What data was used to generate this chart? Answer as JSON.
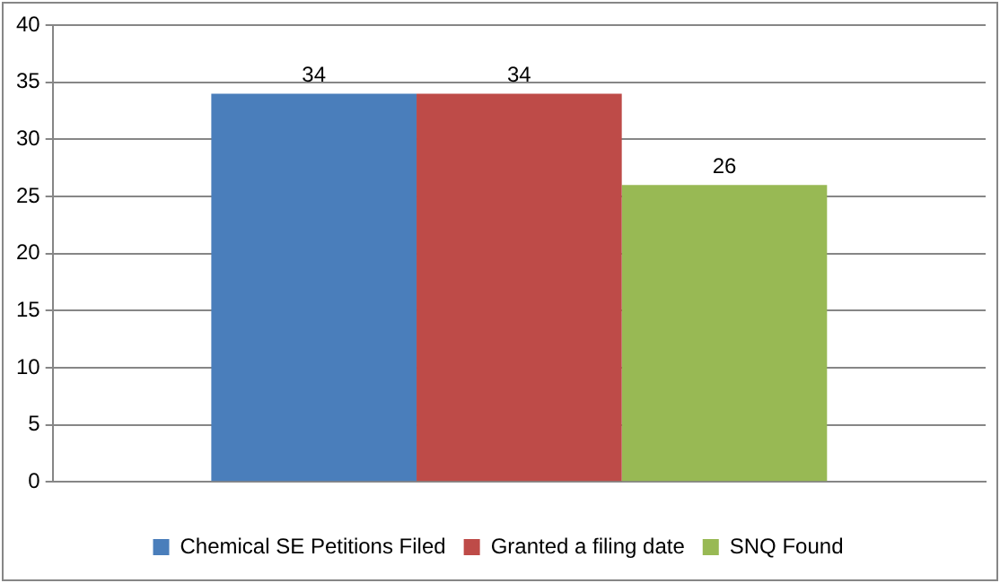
{
  "chart_data": {
    "type": "bar",
    "categories": [
      null
    ],
    "series": [
      {
        "name": "Chemical SE Petitions Filed",
        "color": "#4a7ebb",
        "values": [
          34
        ]
      },
      {
        "name": "Granted a filing date",
        "color": "#be4b48",
        "values": [
          34
        ]
      },
      {
        "name": "SNQ Found",
        "color": "#98b954",
        "values": [
          26
        ]
      }
    ],
    "ylim": [
      0,
      40
    ],
    "yticks": [
      0,
      5,
      10,
      15,
      20,
      25,
      30,
      35,
      40
    ],
    "grid": "y",
    "legend": "bottom",
    "data_labels": true
  }
}
